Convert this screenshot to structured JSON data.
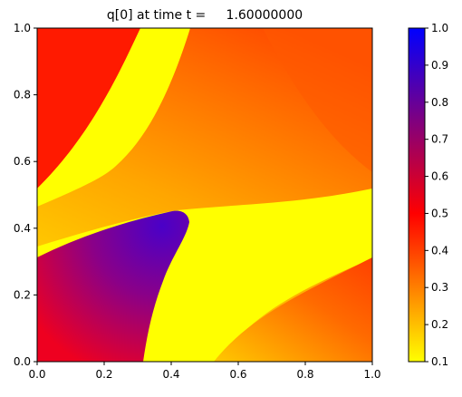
{
  "chart_data": {
    "type": "heatmap",
    "title": "q[0] at time t =     1.60000000",
    "xlabel": "",
    "ylabel": "",
    "xlim": [
      0.0,
      1.0
    ],
    "ylim": [
      0.0,
      1.0
    ],
    "x_ticks": [
      "0.0",
      "0.2",
      "0.4",
      "0.6",
      "0.8",
      "1.0"
    ],
    "y_ticks": [
      "0.0",
      "0.2",
      "0.4",
      "0.6",
      "0.8",
      "1.0"
    ],
    "grid": false,
    "colorbar": {
      "range": [
        0.1,
        1.0
      ],
      "ticks": [
        "0.1",
        "0.2",
        "0.3",
        "0.4",
        "0.5",
        "0.6",
        "0.7",
        "0.8",
        "0.9",
        "1.0"
      ],
      "colors": [
        "#ffff00",
        "#ff0000",
        "#0000ff"
      ]
    },
    "regions": [
      {
        "name": "background-gradient",
        "value_range": [
          0.3,
          0.55
        ]
      },
      {
        "name": "top-left-red",
        "value": 0.55
      },
      {
        "name": "diagonal-yellow-band",
        "value": 0.1
      },
      {
        "name": "blob-purple",
        "value_range": [
          0.55,
          0.85
        ]
      },
      {
        "name": "lower-yellow-band",
        "value": 0.1
      },
      {
        "name": "bottom-right-orange",
        "value_range": [
          0.3,
          0.5
        ]
      }
    ]
  }
}
